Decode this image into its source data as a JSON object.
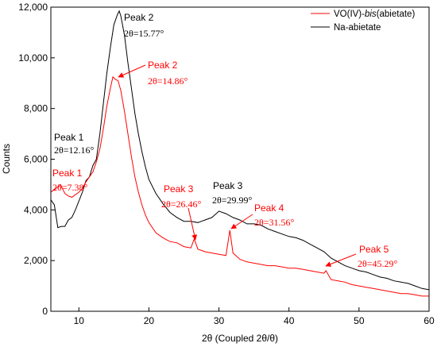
{
  "chart_data": {
    "type": "line",
    "xlabel": "2θ (Coupled 2θ/θ)",
    "ylabel": "Counts",
    "xlim": [
      6,
      60
    ],
    "ylim": [
      0,
      12000
    ],
    "x_ticks": [
      {
        "value": 10,
        "label": "10"
      },
      {
        "value": 20,
        "label": "20"
      },
      {
        "value": 30,
        "label": "30"
      },
      {
        "value": 40,
        "label": "40"
      },
      {
        "value": 50,
        "label": "50"
      },
      {
        "value": 60,
        "label": "60"
      }
    ],
    "y_ticks": [
      {
        "value": 0,
        "label": "0"
      },
      {
        "value": 2000,
        "label": "2,000"
      },
      {
        "value": 4000,
        "label": "4,000"
      },
      {
        "value": 6000,
        "label": "6,000"
      },
      {
        "value": 8000,
        "label": "8,000"
      },
      {
        "value": 10000,
        "label": "10,000"
      },
      {
        "value": 12000,
        "label": "12,000"
      }
    ],
    "grid": false,
    "legend_position": "top-right",
    "legend": [
      {
        "prefix": "VO(IV)-",
        "italic": "bis",
        "suffix": "(abietate)",
        "color": "#ff0000"
      },
      {
        "prefix": "Na-abietate",
        "italic": "",
        "suffix": "",
        "color": "#000000"
      }
    ],
    "series": [
      {
        "color": "#000000",
        "x": [
          6,
          6.5,
          7,
          7.5,
          8,
          8.5,
          9,
          9.5,
          10,
          10.5,
          11,
          11.5,
          12,
          12.5,
          13,
          13.5,
          14,
          14.5,
          15,
          15.5,
          15.77,
          16,
          16.5,
          17,
          17.5,
          18,
          18.5,
          19,
          19.5,
          20,
          21,
          22,
          23,
          24,
          25,
          26,
          27,
          28,
          29,
          30,
          31,
          32,
          33,
          34,
          35,
          36,
          37,
          38,
          39,
          40,
          41,
          42,
          43,
          44,
          45,
          46,
          47,
          48,
          49,
          50,
          51,
          52,
          53,
          54,
          55,
          56,
          57,
          58,
          59,
          60
        ],
        "y": [
          4400,
          4200,
          3300,
          3350,
          3350,
          3600,
          3700,
          4000,
          4350,
          4700,
          5150,
          5300,
          5750,
          6000,
          7000,
          8200,
          9400,
          10400,
          11300,
          11700,
          11850,
          11650,
          10900,
          9800,
          8800,
          7800,
          7000,
          6300,
          5700,
          5200,
          4650,
          4250,
          3900,
          3700,
          3550,
          3550,
          3500,
          3600,
          3700,
          3950,
          3850,
          3700,
          3600,
          3450,
          3450,
          3400,
          3250,
          3150,
          3050,
          2950,
          2900,
          2800,
          2650,
          2500,
          2350,
          2100,
          1950,
          1800,
          1700,
          1600,
          1550,
          1450,
          1350,
          1300,
          1200,
          1150,
          1100,
          1000,
          900,
          850
        ]
      },
      {
        "color": "#ff0000",
        "x": [
          6,
          6.5,
          7,
          7.38,
          8,
          8.5,
          9,
          9.5,
          10,
          10.5,
          11,
          11.5,
          12,
          12.5,
          13,
          13.5,
          14,
          14.5,
          14.86,
          15.2,
          15.6,
          16,
          16.5,
          17,
          17.5,
          18,
          18.5,
          19,
          19.5,
          20,
          21,
          22,
          23,
          24,
          25,
          26,
          26.46,
          27,
          28,
          29,
          30,
          31,
          31.56,
          32,
          33,
          34,
          35,
          36,
          37,
          38,
          39,
          40,
          41,
          42,
          43,
          44,
          45,
          45.29,
          46,
          47,
          48,
          49,
          50,
          51,
          52,
          53,
          54,
          55,
          56,
          57,
          58,
          59,
          60
        ],
        "y": [
          4700,
          4800,
          4900,
          5000,
          4650,
          4550,
          4500,
          4600,
          4700,
          4850,
          5100,
          5300,
          5500,
          5900,
          6400,
          7200,
          8100,
          8800,
          9250,
          9150,
          9100,
          8700,
          7900,
          7000,
          6100,
          5300,
          4700,
          4200,
          3800,
          3500,
          3100,
          2900,
          2750,
          2700,
          2550,
          2500,
          2850,
          2450,
          2350,
          2300,
          2250,
          2200,
          3200,
          2300,
          2050,
          1950,
          1900,
          1850,
          1800,
          1800,
          1750,
          1700,
          1700,
          1650,
          1600,
          1550,
          1500,
          1600,
          1250,
          1200,
          1150,
          1050,
          1000,
          950,
          900,
          850,
          800,
          750,
          700,
          700,
          650,
          600,
          600
        ]
      }
    ],
    "annotations": [
      {
        "name": "Peak 2",
        "value": "2θ=15.77°",
        "color": "#000000"
      },
      {
        "name": "Peak 2",
        "value": "2θ=14.86°",
        "color": "#ff0000"
      },
      {
        "name": "Peak 1",
        "value": "2θ=12.16°",
        "color": "#000000"
      },
      {
        "name": "Peak 1",
        "value": "2θ=7.38°",
        "color": "#ff0000"
      },
      {
        "name": "Peak 3",
        "value": "2θ=26.46°",
        "color": "#ff0000"
      },
      {
        "name": "Peak 3",
        "value": "2θ=29.99°",
        "color": "#000000"
      },
      {
        "name": "Peak 4",
        "value": "2θ=31.56°",
        "color": "#ff0000"
      },
      {
        "name": "Peak 5",
        "value": "2θ=45.29°",
        "color": "#ff0000"
      }
    ]
  }
}
